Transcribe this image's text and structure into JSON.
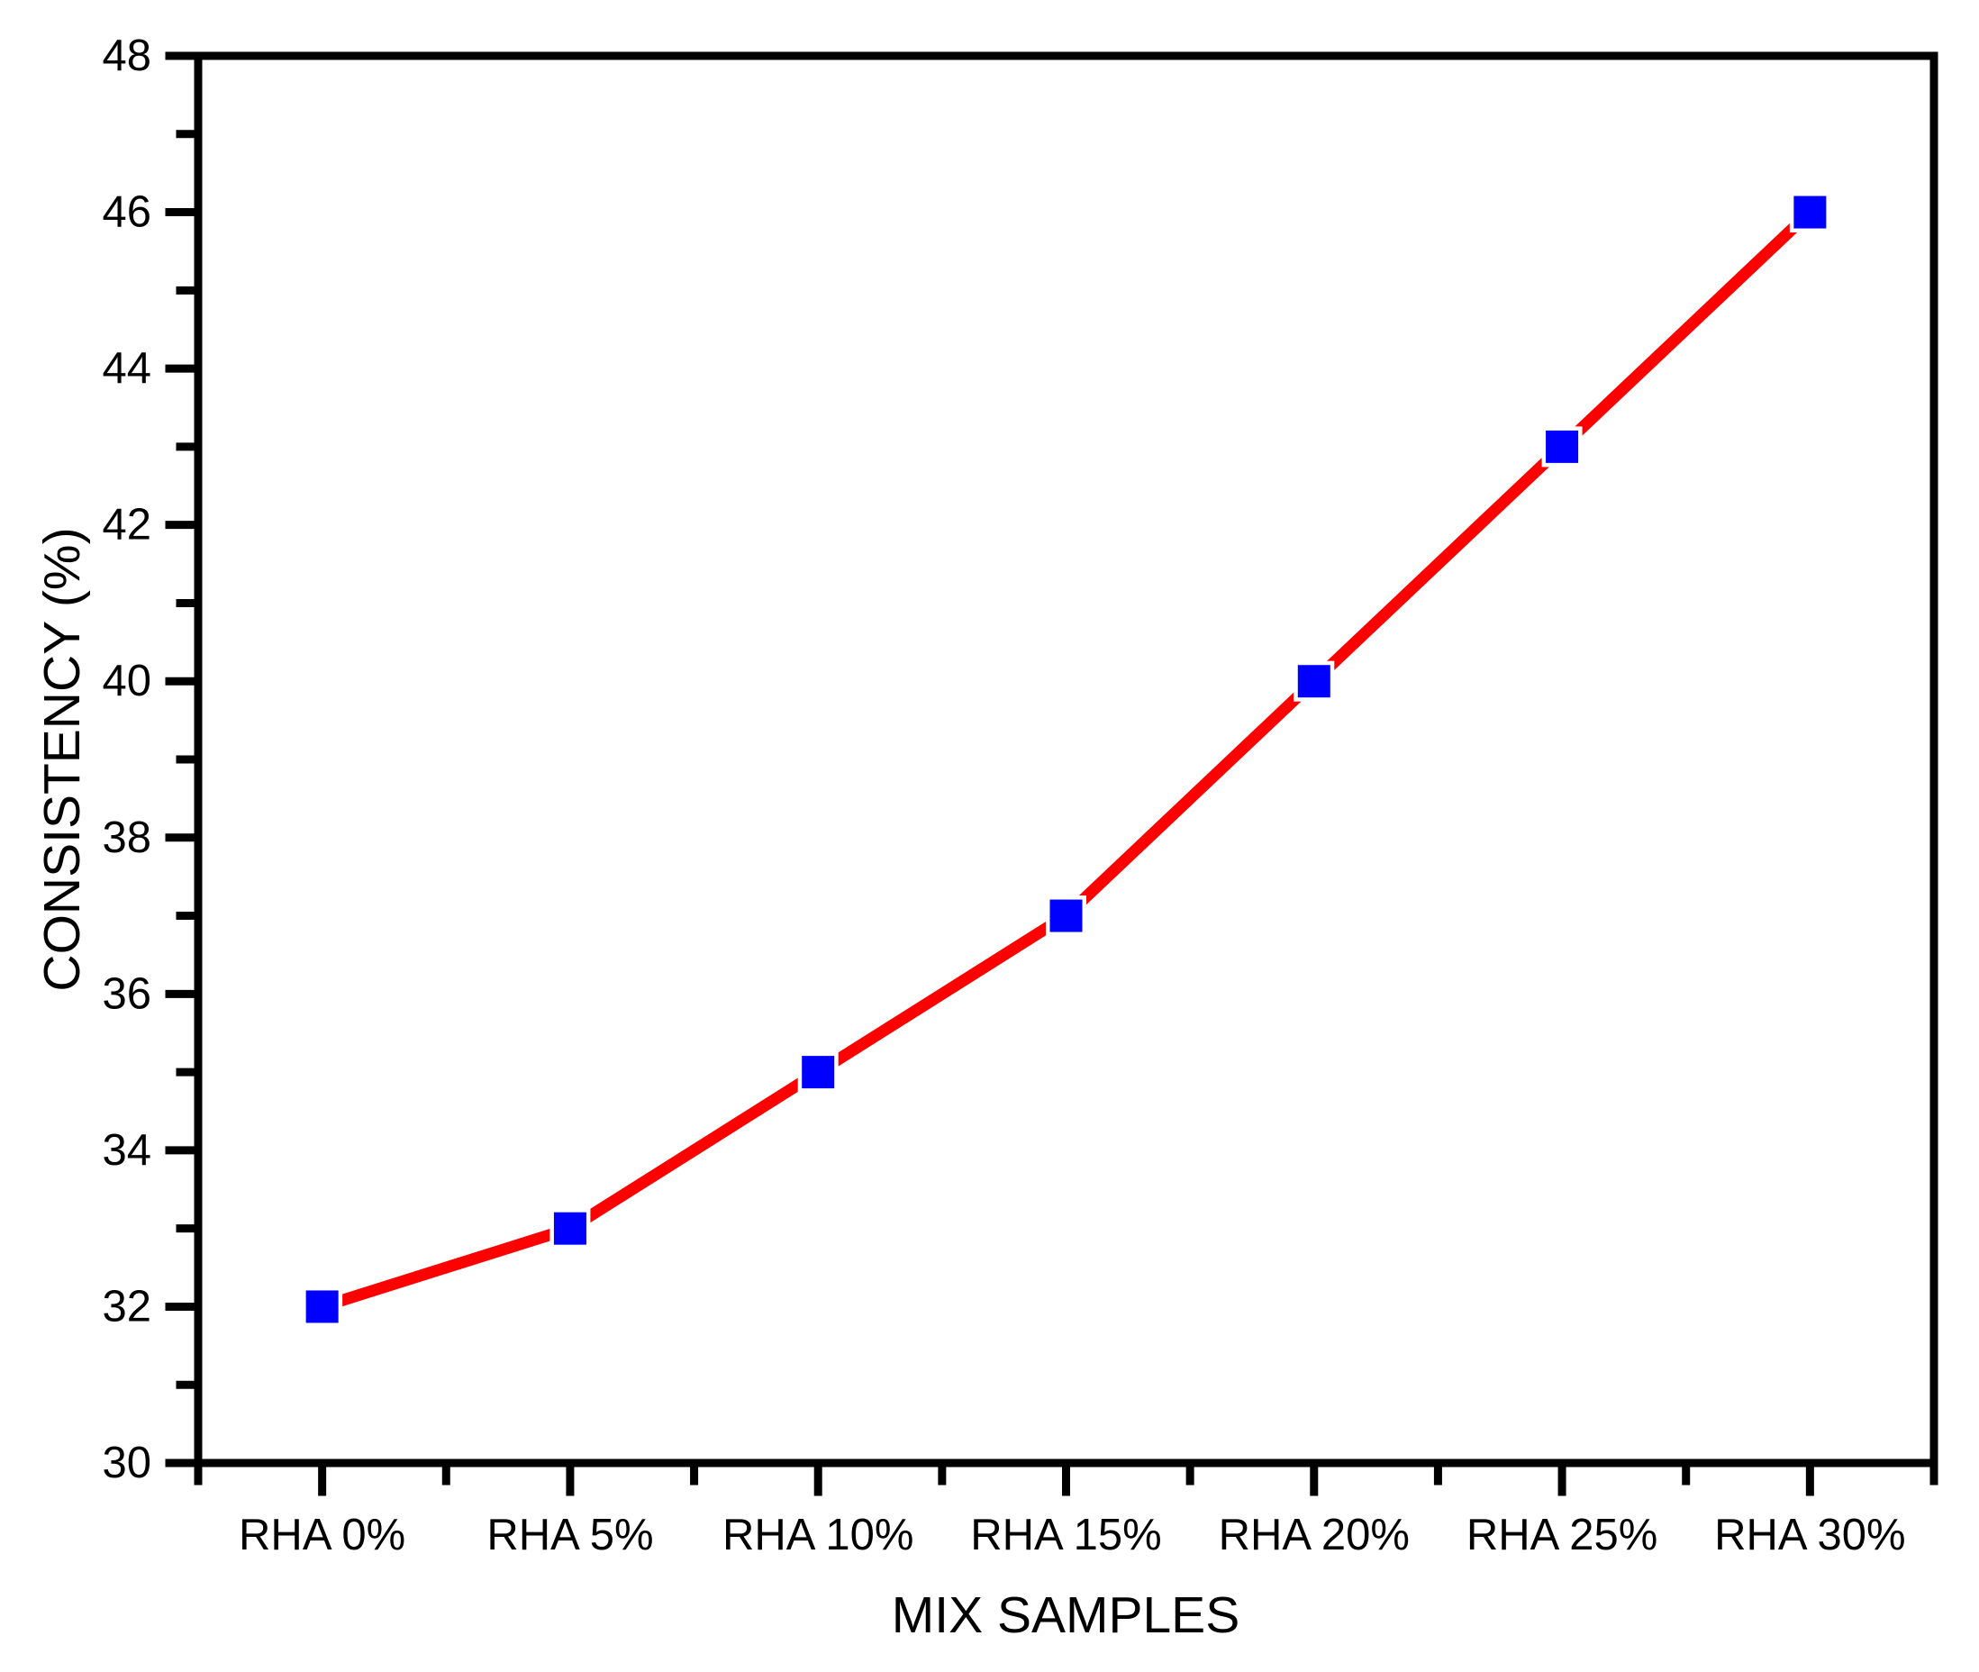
{
  "figure": {
    "background": "#ffffff"
  },
  "chart_data": {
    "type": "line",
    "title": "",
    "xlabel": "MIX SAMPLES",
    "ylabel": "CONSISTENCY (%)",
    "categories": [
      "RHA 0%",
      "RHA 5%",
      "RHA 10%",
      "RHA 15%",
      "RHA 20%",
      "RHA 25%",
      "RHA 30%"
    ],
    "series": [
      {
        "name": "Consistency",
        "values": [
          32,
          33,
          35,
          37,
          40,
          43,
          46
        ]
      }
    ],
    "ylim": [
      30,
      48
    ],
    "y_major_step": 2,
    "y_minor_step": 1,
    "y_tick_labels": [
      "30",
      "32",
      "34",
      "36",
      "38",
      "40",
      "42",
      "44",
      "46",
      "48"
    ],
    "grid": false,
    "legend_position": "none",
    "line_color": "#ff0000",
    "marker_color": "#0000ff",
    "marker_shape": "square",
    "axis_color": "#000000",
    "background_color": "#ffffff"
  }
}
